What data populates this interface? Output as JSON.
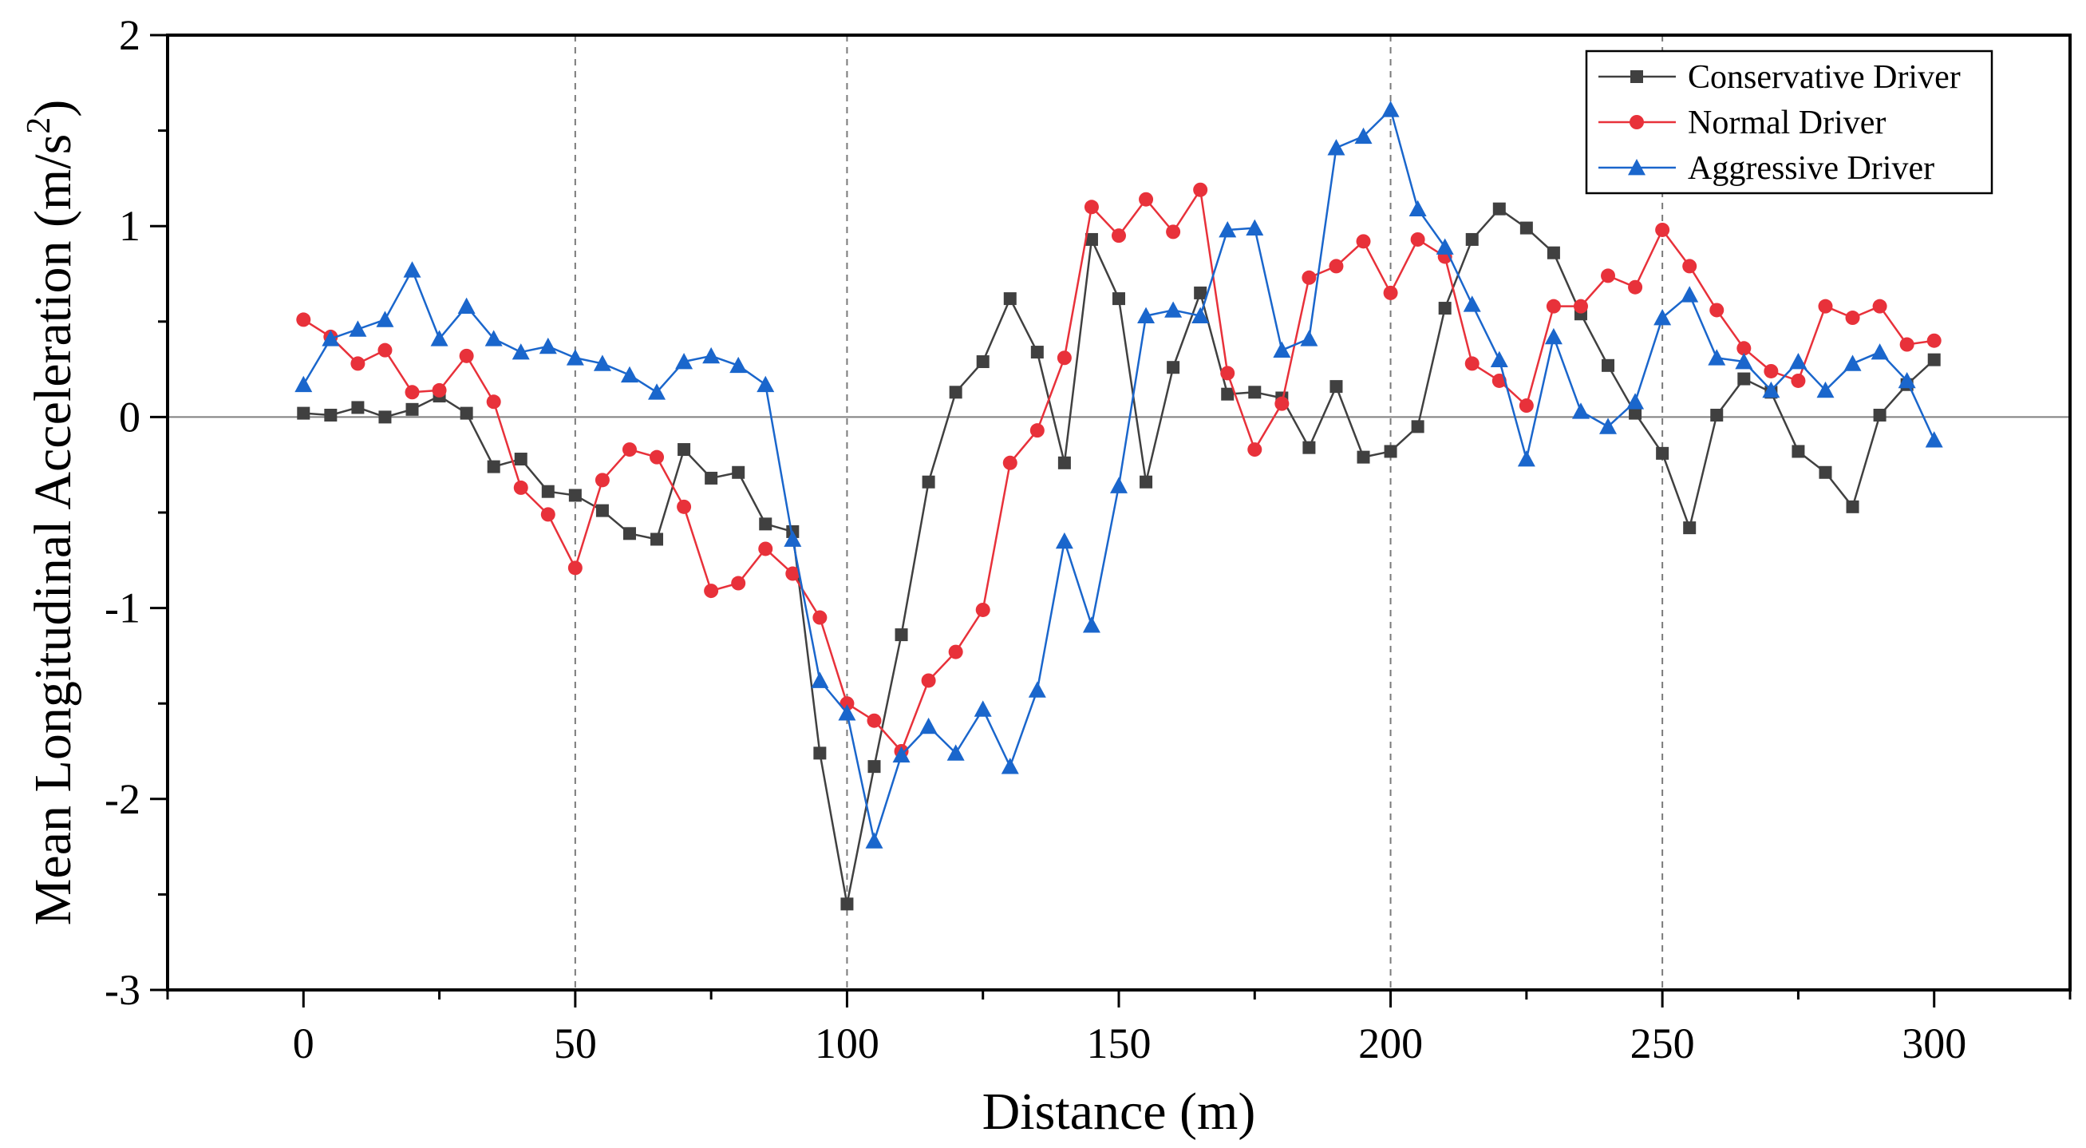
{
  "chart_data": {
    "type": "line",
    "title": "",
    "xlabel": "Distance (m)",
    "ylabel_prefix": "Mean Longitudinal Acceleration (m/s",
    "ylabel_sup": "2",
    "ylabel_suffix": ")",
    "xlim": [
      -25,
      325
    ],
    "ylim": [
      -3,
      2
    ],
    "xticks": [
      0,
      50,
      100,
      150,
      200,
      250,
      300
    ],
    "xtick_labels": [
      "0",
      "50",
      "100",
      "150",
      "200",
      "250",
      "300"
    ],
    "yticks": [
      -3,
      -2,
      -1,
      0,
      1,
      2
    ],
    "ytick_labels": [
      "-3",
      "-2",
      "-1",
      "0",
      "1",
      "2"
    ],
    "reference_lines_x": [
      50,
      100,
      200,
      250
    ],
    "zero_line": true,
    "legend_position": "top-right",
    "x": [
      0,
      5,
      10,
      15,
      20,
      25,
      30,
      35,
      40,
      45,
      50,
      55,
      60,
      65,
      70,
      75,
      80,
      85,
      90,
      95,
      100,
      105,
      110,
      115,
      120,
      125,
      130,
      135,
      140,
      145,
      150,
      155,
      160,
      165,
      170,
      175,
      180,
      185,
      190,
      195,
      200,
      205,
      210,
      215,
      220,
      225,
      230,
      235,
      240,
      245,
      250,
      255,
      260,
      265,
      270,
      275,
      280,
      285,
      290,
      295,
      300
    ],
    "series": [
      {
        "name": "Conservative Driver",
        "color": "#404040",
        "marker": "square",
        "values": [
          0.02,
          0.01,
          0.05,
          0.0,
          0.04,
          0.11,
          0.02,
          -0.26,
          -0.22,
          -0.39,
          -0.41,
          -0.49,
          -0.61,
          -0.64,
          -0.17,
          -0.32,
          -0.29,
          -0.56,
          -0.6,
          -1.76,
          -2.55,
          -1.83,
          -1.14,
          -0.34,
          0.13,
          0.29,
          0.62,
          0.34,
          -0.24,
          0.93,
          0.62,
          -0.34,
          0.26,
          0.65,
          0.12,
          0.13,
          0.1,
          -0.16,
          0.16,
          -0.21,
          -0.18,
          -0.05,
          0.57,
          0.93,
          1.09,
          0.99,
          0.86,
          0.54,
          0.27,
          0.02,
          -0.19,
          -0.58,
          0.01,
          0.2,
          0.13,
          -0.18,
          -0.29,
          -0.47,
          0.01,
          0.17,
          0.3
        ]
      },
      {
        "name": "Normal Driver",
        "color": "#e8313a",
        "marker": "circle",
        "values": [
          0.51,
          0.42,
          0.28,
          0.35,
          0.13,
          0.14,
          0.32,
          0.08,
          -0.37,
          -0.51,
          -0.79,
          -0.33,
          -0.17,
          -0.21,
          -0.47,
          -0.91,
          -0.87,
          -0.69,
          -0.82,
          -1.05,
          -1.5,
          -1.59,
          -1.75,
          -1.38,
          -1.23,
          -1.01,
          -0.24,
          -0.07,
          0.31,
          1.1,
          0.95,
          1.14,
          0.97,
          1.19,
          0.23,
          -0.17,
          0.07,
          0.73,
          0.79,
          0.92,
          0.65,
          0.93,
          0.84,
          0.28,
          0.19,
          0.06,
          0.58,
          0.58,
          0.74,
          0.68,
          0.98,
          0.79,
          0.56,
          0.36,
          0.24,
          0.19,
          0.58,
          0.52,
          0.58,
          0.38,
          0.4
        ]
      },
      {
        "name": "Aggressive Driver",
        "color": "#1a66cc",
        "marker": "triangle",
        "values": [
          0.17,
          0.41,
          0.46,
          0.51,
          0.77,
          0.41,
          0.58,
          0.41,
          0.34,
          0.37,
          0.31,
          0.28,
          0.22,
          0.13,
          0.29,
          0.32,
          0.27,
          0.17,
          -0.64,
          -1.38,
          -1.55,
          -2.22,
          -1.77,
          -1.62,
          -1.76,
          -1.53,
          -1.83,
          -1.43,
          -0.65,
          -1.09,
          -0.36,
          0.53,
          0.56,
          0.53,
          0.98,
          0.99,
          0.35,
          0.41,
          1.41,
          1.47,
          1.61,
          1.09,
          0.89,
          0.59,
          0.3,
          -0.22,
          0.42,
          0.03,
          -0.05,
          0.08,
          0.52,
          0.64,
          0.31,
          0.29,
          0.14,
          0.29,
          0.14,
          0.28,
          0.34,
          0.19,
          -0.12
        ]
      }
    ]
  }
}
